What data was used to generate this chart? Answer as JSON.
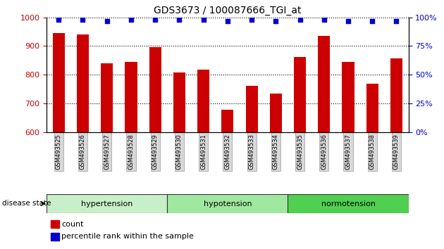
{
  "title": "GDS3673 / 100087666_TGI_at",
  "samples": [
    "GSM493525",
    "GSM493526",
    "GSM493527",
    "GSM493528",
    "GSM493529",
    "GSM493530",
    "GSM493531",
    "GSM493532",
    "GSM493533",
    "GSM493534",
    "GSM493535",
    "GSM493536",
    "GSM493537",
    "GSM493538",
    "GSM493539"
  ],
  "counts": [
    945,
    940,
    840,
    845,
    897,
    808,
    818,
    678,
    762,
    733,
    862,
    935,
    845,
    768,
    857
  ],
  "percentile_ranks": [
    98,
    98,
    97,
    98,
    98,
    98,
    98,
    97,
    98,
    97,
    98,
    98,
    97,
    97,
    97
  ],
  "groups": [
    {
      "label": "hypertension",
      "start": 0,
      "end": 5,
      "color": "#c8f0c8"
    },
    {
      "label": "hypotension",
      "start": 5,
      "end": 10,
      "color": "#a0e8a0"
    },
    {
      "label": "normotension",
      "start": 10,
      "end": 15,
      "color": "#50d050"
    }
  ],
  "ylim_left": [
    600,
    1000
  ],
  "yticks_left": [
    600,
    700,
    800,
    900,
    1000
  ],
  "ylim_right": [
    0,
    100
  ],
  "yticks_right": [
    0,
    25,
    50,
    75,
    100
  ],
  "bar_color": "#CC0000",
  "dot_color": "#0000CC",
  "bar_bottom": 600,
  "tick_label_color_left": "#CC0000",
  "tick_label_color_right": "#0000CC",
  "legend_items": [
    {
      "color": "#CC0000",
      "label": "count"
    },
    {
      "color": "#0000CC",
      "label": "percentile rank within the sample"
    }
  ]
}
